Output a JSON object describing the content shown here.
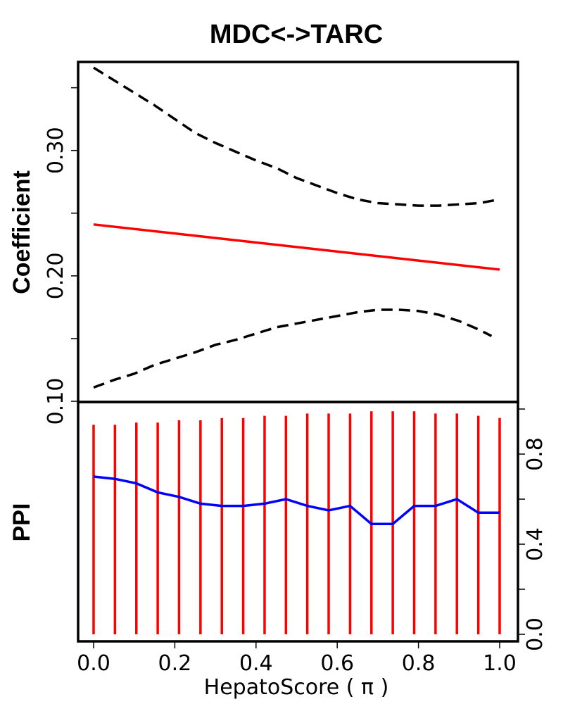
{
  "chart_data": [
    {
      "type": "line",
      "title": "MDC<->TARC",
      "ylabel": "Coefficient",
      "xlim": [
        0,
        1
      ],
      "ylim": [
        0.1,
        0.37
      ],
      "yticks": [
        0.1,
        0.15,
        0.2,
        0.25,
        0.3,
        0.35
      ],
      "ytick_labels": [
        "0.10",
        "",
        "0.20",
        "",
        "0.30",
        ""
      ],
      "series": [
        {
          "role": "estimate",
          "color": "#ff0000",
          "style": "solid",
          "x": [
            0,
            1
          ],
          "y": [
            0.241,
            0.205
          ]
        },
        {
          "role": "upper-band",
          "color": "#000000",
          "style": "dashed",
          "x": [
            0,
            0.05,
            0.1,
            0.15,
            0.2,
            0.25,
            0.3,
            0.35,
            0.4,
            0.45,
            0.5,
            0.55,
            0.6,
            0.65,
            0.7,
            0.75,
            0.8,
            0.85,
            0.9,
            0.95,
            1.0
          ],
          "y": [
            0.366,
            0.356,
            0.346,
            0.336,
            0.325,
            0.314,
            0.306,
            0.299,
            0.292,
            0.286,
            0.278,
            0.272,
            0.266,
            0.261,
            0.258,
            0.257,
            0.256,
            0.256,
            0.257,
            0.258,
            0.261
          ]
        },
        {
          "role": "lower-band",
          "color": "#000000",
          "style": "dashed",
          "x": [
            0,
            0.05,
            0.1,
            0.15,
            0.2,
            0.25,
            0.3,
            0.35,
            0.4,
            0.45,
            0.5,
            0.55,
            0.6,
            0.65,
            0.7,
            0.75,
            0.8,
            0.85,
            0.9,
            0.95,
            0.98
          ],
          "y": [
            0.111,
            0.117,
            0.122,
            0.129,
            0.134,
            0.139,
            0.145,
            0.149,
            0.154,
            0.159,
            0.162,
            0.165,
            0.168,
            0.171,
            0.173,
            0.173,
            0.172,
            0.169,
            0.164,
            0.157,
            0.152
          ]
        }
      ]
    },
    {
      "type": "line",
      "ylabel": "PPI",
      "xlabel": "HepatoScore ( π )",
      "xlim": [
        0,
        1
      ],
      "ylim": [
        0,
        1
      ],
      "xticks": [
        0.0,
        0.2,
        0.4,
        0.6,
        0.8,
        1.0
      ],
      "xtick_labels": [
        "0.0",
        "0.2",
        "0.4",
        "0.6",
        "0.8",
        "1.0"
      ],
      "yticks": [
        0.0,
        0.2,
        0.4,
        0.6,
        0.8,
        1.0
      ],
      "ytick_labels": [
        "0.0",
        "",
        "0.4",
        "",
        "0.8",
        ""
      ],
      "x": [
        0,
        0.0526,
        0.1053,
        0.1579,
        0.2105,
        0.2632,
        0.3158,
        0.3684,
        0.4211,
        0.4737,
        0.5263,
        0.5789,
        0.6316,
        0.6842,
        0.7368,
        0.7895,
        0.8421,
        0.8947,
        0.9474,
        1.0
      ],
      "series": [
        {
          "role": "vertical-bars",
          "color": "#ff0000",
          "style": "segments",
          "y": [
            0.93,
            0.93,
            0.94,
            0.94,
            0.95,
            0.95,
            0.96,
            0.96,
            0.97,
            0.97,
            0.98,
            0.98,
            0.98,
            0.99,
            0.99,
            0.99,
            0.98,
            0.98,
            0.97,
            0.96
          ]
        },
        {
          "role": "ppi-curve",
          "color": "#0000ff",
          "style": "solid",
          "y": [
            0.7,
            0.69,
            0.67,
            0.63,
            0.61,
            0.58,
            0.57,
            0.57,
            0.58,
            0.6,
            0.57,
            0.55,
            0.57,
            0.49,
            0.49,
            0.57,
            0.57,
            0.6,
            0.54,
            0.54
          ]
        }
      ]
    }
  ]
}
